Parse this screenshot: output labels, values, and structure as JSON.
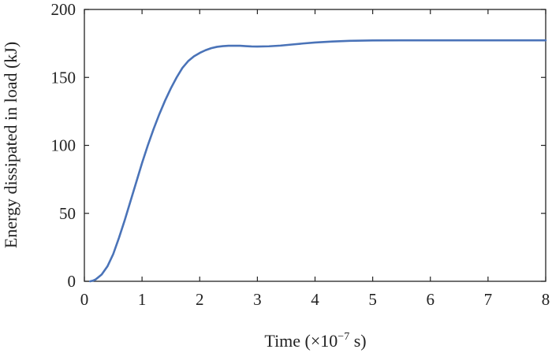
{
  "chart_data": {
    "type": "line",
    "title": "",
    "xlabel_prefix": "Time (×10",
    "xlabel_exp": "−7",
    "xlabel_suffix": " s)",
    "ylabel": "Energy dissipated in load (kJ)",
    "xlim": [
      0,
      8
    ],
    "ylim": [
      0,
      200
    ],
    "xticks": [
      0,
      1,
      2,
      3,
      4,
      5,
      6,
      7,
      8
    ],
    "yticks": [
      0,
      50,
      100,
      150,
      200
    ],
    "grid": false,
    "legend": "none",
    "line_color": "#4a73b8",
    "series": [
      {
        "x": [
          0.1,
          0.15,
          0.2,
          0.3,
          0.4,
          0.5,
          0.6,
          0.7,
          0.8,
          0.9,
          1.0,
          1.1,
          1.2,
          1.3,
          1.4,
          1.5,
          1.6,
          1.7,
          1.8,
          1.9,
          2.0,
          2.1,
          2.2,
          2.3,
          2.4,
          2.5,
          2.6,
          2.7,
          2.8,
          2.9,
          3.0,
          3.2,
          3.4,
          3.6,
          3.8,
          4.0,
          4.3,
          4.6,
          5.0,
          5.5,
          6.0,
          6.5,
          7.0,
          7.5,
          8.0
        ],
        "y": [
          0,
          0.5,
          1.5,
          5,
          11,
          20,
          32,
          45,
          59,
          73,
          87,
          100,
          112,
          123,
          133,
          142,
          150,
          157,
          162,
          165.5,
          168,
          170,
          171.5,
          172.5,
          173,
          173.3,
          173.3,
          173.3,
          173,
          172.8,
          172.7,
          172.9,
          173.4,
          174.2,
          175.0,
          175.7,
          176.4,
          176.9,
          177.2,
          177.3,
          177.3,
          177.3,
          177.3,
          177.3,
          177.3
        ]
      }
    ]
  }
}
